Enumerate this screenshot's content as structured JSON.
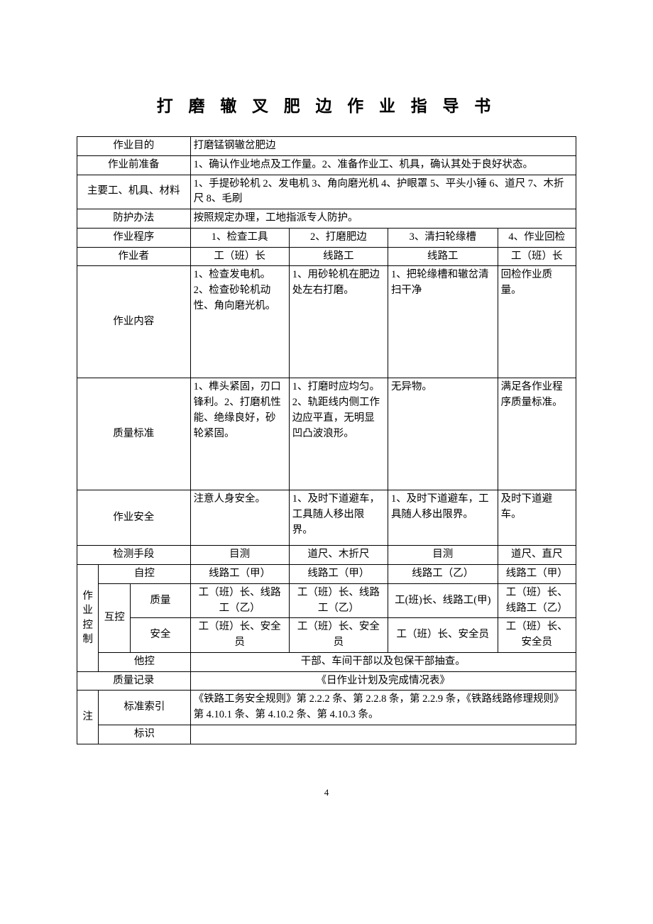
{
  "title": "打 磨 辙 叉 肥 边 作 业 指 导 书",
  "header_labels": {
    "purpose": "作业目的",
    "prep": "作业前准备",
    "tools": "主要工、机具、材料",
    "protect": "防护办法",
    "procedure": "作业程序",
    "operator": "作业者",
    "content": "作业内容",
    "quality": "质量标准",
    "safety": "作业安全",
    "detect": "检测手段",
    "ctrl": "作业控制",
    "self_ctrl": "自控",
    "mutual": "互控",
    "quality_sub": "质量",
    "safety_sub": "安全",
    "other_ctrl": "他控",
    "record": "质量记录",
    "note": "注",
    "std_ref": "标准索引",
    "mark": "标识"
  },
  "purpose": "打磨锰钢辙岔肥边",
  "prep": "1、确认作业地点及工作量。2、准备作业工、机具，确认其处于良好状态。",
  "tools": "1、手提砂轮机 2、发电机  3、角向磨光机  4、护眼罩  5、平头小锤  6、道尺 7、木折尺 8、毛刷",
  "protect": "按照规定办理，工地指派专人防护。",
  "procedure": {
    "c1": "1、检查工具",
    "c2": "2、打磨肥边",
    "c3": "3、清扫轮缘槽",
    "c4": "4、作业回检"
  },
  "operator": {
    "c1": "工（班）长",
    "c2": "线路工",
    "c3": "线路工",
    "c4": "工（班）长"
  },
  "content": {
    "c1": "1、检查发电机。2、检查砂轮机动性、角向磨光机。",
    "c2": "1、用砂轮机在肥边处左右打磨。",
    "c3": "1、把轮缘槽和辙岔清扫干净",
    "c4": "回检作业质量。"
  },
  "quality": {
    "c1": "1、榫头紧固，刃口锋利。2、打磨机性能、绝缘良好，砂轮紧固。",
    "c2": "1、打磨时应均匀。2、轨距线内侧工作边应平直，无明显凹凸波浪形。",
    "c3": "无异物。",
    "c4": "满足各作业程序质量标准。"
  },
  "safety": {
    "c1": "注意人身安全。",
    "c2": "1、及时下道避车，工具随人移出限界。",
    "c3": "1、及时下道避车，工具随人移出限界。",
    "c4": "及时下道避车。"
  },
  "detect": {
    "c1": "目测",
    "c2": "道尺、木折尺",
    "c3": "目测",
    "c4": "道尺、直尺"
  },
  "self": {
    "c1": "线路工（甲）",
    "c2": "线路工（甲）",
    "c3": "线路工（乙）",
    "c4": "线路工（甲）"
  },
  "mutual_q": {
    "c1": "工（班）长、线路工（乙）",
    "c2": "工（班）长、线路工（乙）",
    "c3": "工(班)长、线路工(甲)",
    "c4": "工（班）长、线路工（乙）"
  },
  "mutual_s": {
    "c1": "工（班）长、安全员",
    "c2": "工（班）长、安全员",
    "c3": "工（班）长、安全员",
    "c4": "工（班）长、安全员"
  },
  "other": "干部、车间干部以及包保干部抽查。",
  "record": "《日作业计划及完成情况表》",
  "std_ref": "《铁路工务安全规则》第 2.2.2 条、第 2.2.8 条，第 2.2.9 条，《铁路线路修理规则》第 4.10.1 条、第 4.10.2 条、第 4.10.3 条。",
  "mark": "",
  "page": "4"
}
